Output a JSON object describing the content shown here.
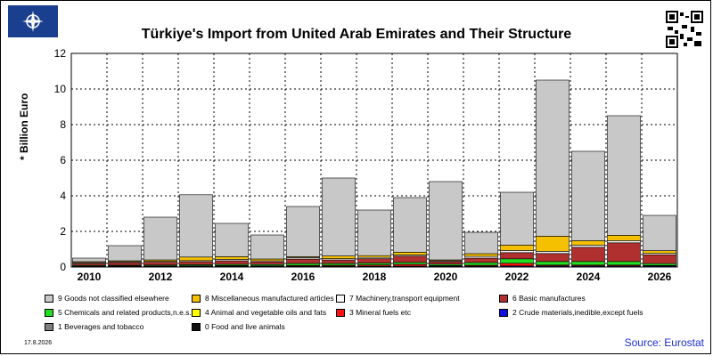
{
  "header": {
    "title": "Türkiye's Import from United Arab Emirates and Their Structure"
  },
  "footer": {
    "date": "17.8.2026",
    "source": "Source: Eurostat"
  },
  "chart_data": {
    "type": "bar",
    "stacked": true,
    "ylabel": "* Billion Euro",
    "ylim": [
      0,
      12
    ],
    "yticks": [
      0,
      2,
      4,
      6,
      8,
      10,
      12
    ],
    "categories": [
      2010,
      2011,
      2012,
      2013,
      2014,
      2015,
      2016,
      2017,
      2018,
      2019,
      2020,
      2021,
      2022,
      2023,
      2024,
      2025,
      2026
    ],
    "xtick_labels": [
      "2010",
      "",
      "2012",
      "",
      "2014",
      "",
      "2016",
      "",
      "2018",
      "",
      "2020",
      "",
      "2022",
      "",
      "2024",
      "",
      "2026"
    ],
    "grid": true,
    "series": [
      {
        "name": "0 Food and live animals",
        "color": "#111111",
        "values": [
          0.02,
          0.02,
          0.02,
          0.02,
          0.02,
          0.02,
          0.02,
          0.02,
          0.02,
          0.02,
          0.02,
          0.02,
          0.02,
          0.02,
          0.02,
          0.02,
          0.02
        ]
      },
      {
        "name": "1 Beverages and tobacco",
        "color": "#808080",
        "values": [
          0.0,
          0.0,
          0.0,
          0.0,
          0.0,
          0.0,
          0.0,
          0.0,
          0.0,
          0.0,
          0.0,
          0.0,
          0.0,
          0.0,
          0.0,
          0.0,
          0.0
        ]
      },
      {
        "name": "2 Crude materials,inedible,except fuels",
        "color": "#1010e0",
        "values": [
          0.02,
          0.02,
          0.02,
          0.03,
          0.03,
          0.03,
          0.03,
          0.03,
          0.03,
          0.03,
          0.03,
          0.03,
          0.04,
          0.04,
          0.04,
          0.04,
          0.04
        ]
      },
      {
        "name": "3 Mineral fuels etc",
        "color": "#ff1010",
        "values": [
          0.01,
          0.02,
          0.02,
          0.02,
          0.03,
          0.02,
          0.04,
          0.05,
          0.07,
          0.1,
          0.03,
          0.05,
          0.15,
          0.05,
          0.05,
          0.05,
          0.03
        ]
      },
      {
        "name": "4 Animal and vegetable oils and fats",
        "color": "#ffff00",
        "values": [
          0.0,
          0.0,
          0.0,
          0.0,
          0.0,
          0.0,
          0.0,
          0.0,
          0.0,
          0.0,
          0.0,
          0.0,
          0.0,
          0.0,
          0.0,
          0.0,
          0.0
        ]
      },
      {
        "name": "5 Chemicals and related products,n.e.s.",
        "color": "#22dd22",
        "values": [
          0.04,
          0.04,
          0.05,
          0.06,
          0.07,
          0.07,
          0.11,
          0.1,
          0.1,
          0.11,
          0.08,
          0.15,
          0.25,
          0.2,
          0.2,
          0.2,
          0.1
        ]
      },
      {
        "name": "6 Basic manufactures",
        "color": "#b03030",
        "values": [
          0.11,
          0.15,
          0.16,
          0.17,
          0.2,
          0.15,
          0.25,
          0.2,
          0.25,
          0.35,
          0.14,
          0.25,
          0.35,
          0.45,
          0.8,
          1.05,
          0.5
        ]
      },
      {
        "name": "7 Machinery,transport equipment",
        "color": "#f8f8f8",
        "values": [
          0.05,
          0.05,
          0.05,
          0.06,
          0.08,
          0.06,
          0.08,
          0.07,
          0.07,
          0.07,
          0.05,
          0.1,
          0.12,
          0.12,
          0.12,
          0.12,
          0.08
        ]
      },
      {
        "name": "8 Miscellaneous manufactured articles",
        "color": "#f5c000",
        "values": [
          0.05,
          0.05,
          0.08,
          0.2,
          0.15,
          0.1,
          0.05,
          0.15,
          0.1,
          0.15,
          0.05,
          0.15,
          0.3,
          0.85,
          0.25,
          0.3,
          0.15
        ]
      },
      {
        "name": "9 Goods not classified elsewhere",
        "color": "#c8c8c8",
        "values": [
          0.2,
          0.85,
          2.4,
          3.5,
          1.87,
          1.35,
          2.82,
          4.38,
          2.56,
          3.07,
          4.4,
          1.2,
          2.97,
          8.77,
          5.02,
          6.72,
          1.98
        ]
      }
    ],
    "legend_order": [
      "9 Goods not classified elsewhere",
      "8 Miscellaneous manufactured articles",
      "7 Machinery,transport equipment",
      "6 Basic manufactures",
      "5 Chemicals and related products,n.e.s.",
      "4 Animal and vegetable oils and fats",
      "3 Mineral fuels etc",
      "2 Crude materials,inedible,except fuels",
      "1 Beverages and tobacco",
      "0 Food and live animals"
    ],
    "legend_position": "bottom"
  },
  "icons": {
    "logo": "nato-compass-logo",
    "qr": "qr-code-icon"
  }
}
